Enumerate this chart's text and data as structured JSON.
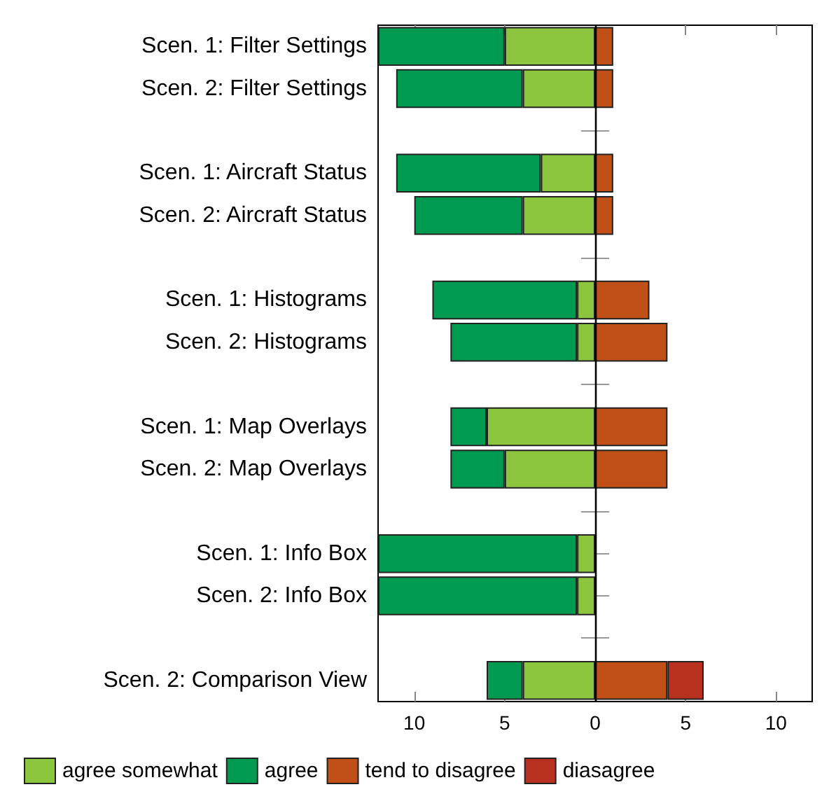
{
  "chart_data": {
    "type": "bar",
    "orientation": "horizontal",
    "stacked": true,
    "categories": [
      "Scen. 1: Filter Settings",
      "Scen. 2: Filter Settings",
      null,
      "Scen. 1: Aircraft Status",
      "Scen. 2: Aircraft Status",
      null,
      "Scen. 1: Histograms",
      "Scen. 2: Histograms",
      null,
      "Scen. 1: Map Overlays",
      "Scen. 2: Map Overlays",
      null,
      "Scen. 1: Info Box",
      "Scen. 2: Info Box",
      null,
      "Scen. 2: Comparison View"
    ],
    "series": [
      {
        "name": "agree somewhat",
        "color": "#8cc63f",
        "values": [
          -5,
          -4,
          null,
          -3,
          -4,
          null,
          -1,
          -1,
          null,
          -6,
          -5,
          null,
          -1,
          -1,
          null,
          -4
        ]
      },
      {
        "name": "agree",
        "color": "#009a50",
        "values": [
          -7,
          -7,
          null,
          -8,
          -6,
          null,
          -8,
          -7,
          null,
          -2,
          -3,
          null,
          -11,
          -11,
          null,
          -2
        ]
      },
      {
        "name": "tend to disagree",
        "color": "#c05018",
        "values": [
          1,
          1,
          null,
          1,
          1,
          null,
          3,
          4,
          null,
          4,
          4,
          null,
          null,
          null,
          null,
          4
        ]
      },
      {
        "name": "diasagree",
        "color": "#b83020",
        "values": [
          null,
          null,
          null,
          null,
          null,
          null,
          null,
          null,
          null,
          null,
          null,
          null,
          null,
          null,
          null,
          2
        ]
      }
    ],
    "xlim": [
      -12,
      12
    ],
    "xticks": [
      {
        "value": -10,
        "label": "10"
      },
      {
        "value": -5,
        "label": "5"
      },
      0,
      5,
      10
    ],
    "ref_lines": [
      {
        "axis": "x",
        "value": 0,
        "color": "#000000"
      }
    ],
    "grid": false,
    "legend": "bottom left"
  }
}
